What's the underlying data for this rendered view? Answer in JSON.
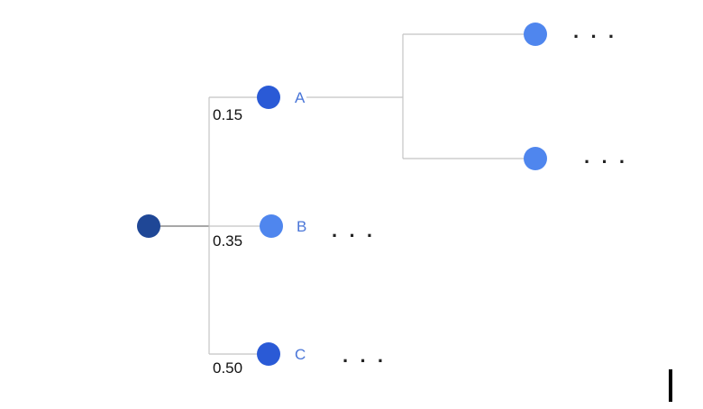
{
  "colors": {
    "root": "#1f4796",
    "dark_node": "#2a5ad6",
    "light_node": "#4f86ee",
    "label": "#4a76d8",
    "edge": "#c4c4c4"
  },
  "tree": {
    "root": {
      "name": "root-node"
    },
    "branches": [
      {
        "key": "a",
        "prob": "0.15",
        "label": "A",
        "ellipsis": ""
      },
      {
        "key": "b",
        "prob": "0.35",
        "label": "B",
        "ellipsis": "· · ·"
      },
      {
        "key": "c",
        "prob": "0.50",
        "label": "C",
        "ellipsis": "· · ·"
      }
    ],
    "sub_branches": [
      {
        "key": "a1",
        "ellipsis": "· · ·"
      },
      {
        "key": "a2",
        "ellipsis": "· · ·"
      }
    ]
  }
}
